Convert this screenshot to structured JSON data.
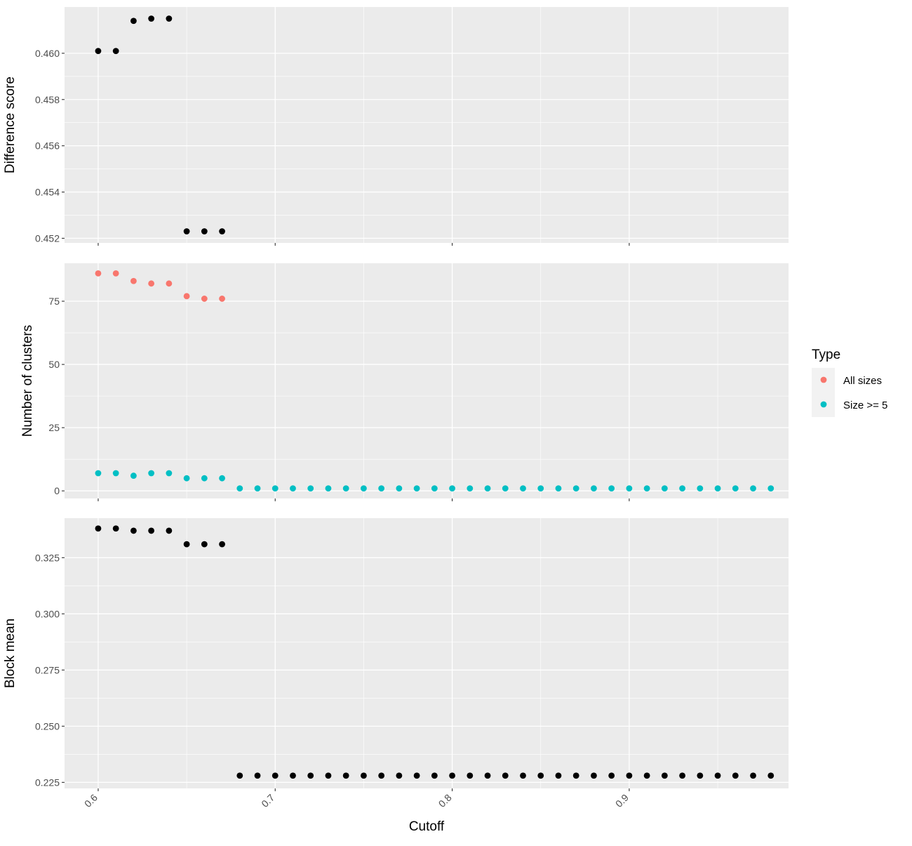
{
  "chart_data": [
    {
      "type": "scatter",
      "panel": "top",
      "ylabel": "Difference score",
      "xlim": [
        0.581,
        0.99
      ],
      "ylim": [
        0.4518,
        0.462
      ],
      "yticks": [
        0.452,
        0.454,
        0.456,
        0.458,
        0.46
      ],
      "ytick_labels": [
        "0.452",
        "0.454",
        "0.456",
        "0.458",
        "0.460"
      ],
      "grid": true,
      "series": [
        {
          "color": "#000000",
          "x": [
            0.6,
            0.61,
            0.62,
            0.63,
            0.64,
            0.65,
            0.66,
            0.67
          ],
          "y": [
            0.4601,
            0.4601,
            0.4614,
            0.4615,
            0.4615,
            0.4523,
            0.4523,
            0.4523
          ]
        }
      ]
    },
    {
      "type": "scatter",
      "panel": "middle",
      "ylabel": "Number of clusters",
      "xlim": [
        0.581,
        0.99
      ],
      "ylim": [
        -3,
        90
      ],
      "yticks": [
        0,
        25,
        50,
        75
      ],
      "ytick_labels": [
        "0",
        "25",
        "50",
        "75"
      ],
      "grid": true,
      "legend": {
        "title": "Type",
        "placement": "right",
        "entries": [
          "All sizes",
          "Size >= 5"
        ]
      },
      "series": [
        {
          "name": "All sizes",
          "color": "#F8766D",
          "x": [
            0.6,
            0.61,
            0.62,
            0.63,
            0.64,
            0.65,
            0.66,
            0.67
          ],
          "y": [
            86,
            86,
            83,
            82,
            82,
            77,
            76,
            76
          ]
        },
        {
          "name": "Size >= 5",
          "color": "#00BFC4",
          "x": [
            0.6,
            0.61,
            0.62,
            0.63,
            0.64,
            0.65,
            0.66,
            0.67,
            0.68,
            0.69,
            0.7,
            0.71,
            0.72,
            0.73,
            0.74,
            0.75,
            0.76,
            0.77,
            0.78,
            0.79,
            0.8,
            0.81,
            0.82,
            0.83,
            0.84,
            0.85,
            0.86,
            0.87,
            0.88,
            0.89,
            0.9,
            0.91,
            0.92,
            0.93,
            0.94,
            0.95,
            0.96,
            0.97,
            0.98
          ],
          "y": [
            7,
            7,
            6,
            7,
            7,
            5,
            5,
            5,
            1,
            1,
            1,
            1,
            1,
            1,
            1,
            1,
            1,
            1,
            1,
            1,
            1,
            1,
            1,
            1,
            1,
            1,
            1,
            1,
            1,
            1,
            1,
            1,
            1,
            1,
            1,
            1,
            1,
            1,
            1
          ]
        }
      ]
    },
    {
      "type": "scatter",
      "panel": "bottom",
      "ylabel": "Block mean",
      "xlabel": "Cutoff",
      "xlim": [
        0.581,
        0.99
      ],
      "ylim": [
        0.2223,
        0.3426
      ],
      "xticks": [
        0.6,
        0.7,
        0.8,
        0.9
      ],
      "xtick_labels": [
        "0.6",
        "0.7",
        "0.8",
        "0.9"
      ],
      "yticks": [
        0.225,
        0.25,
        0.275,
        0.3,
        0.325
      ],
      "ytick_labels": [
        "0.225",
        "0.250",
        "0.275",
        "0.300",
        "0.325"
      ],
      "grid": true,
      "series": [
        {
          "color": "#000000",
          "x": [
            0.6,
            0.61,
            0.62,
            0.63,
            0.64,
            0.65,
            0.66,
            0.67,
            0.68,
            0.69,
            0.7,
            0.71,
            0.72,
            0.73,
            0.74,
            0.75,
            0.76,
            0.77,
            0.78,
            0.79,
            0.8,
            0.81,
            0.82,
            0.83,
            0.84,
            0.85,
            0.86,
            0.87,
            0.88,
            0.89,
            0.9,
            0.91,
            0.92,
            0.93,
            0.94,
            0.95,
            0.96,
            0.97,
            0.98
          ],
          "y": [
            0.338,
            0.338,
            0.337,
            0.337,
            0.337,
            0.331,
            0.331,
            0.331,
            0.228,
            0.228,
            0.228,
            0.228,
            0.228,
            0.228,
            0.228,
            0.228,
            0.228,
            0.228,
            0.228,
            0.228,
            0.228,
            0.228,
            0.228,
            0.228,
            0.228,
            0.228,
            0.228,
            0.228,
            0.228,
            0.228,
            0.228,
            0.228,
            0.228,
            0.228,
            0.228,
            0.228,
            0.228,
            0.228,
            0.228
          ]
        }
      ]
    }
  ],
  "colors": {
    "panel_background": "#EBEBEB",
    "grid_major": "#FFFFFF",
    "all_sizes": "#F8766D",
    "size_ge_5": "#00BFC4",
    "points_default": "#000000"
  }
}
